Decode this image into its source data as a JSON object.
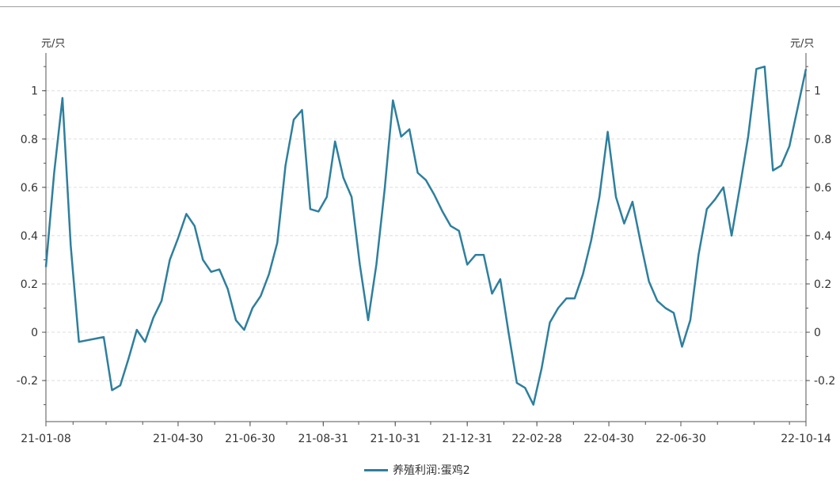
{
  "chart_data": {
    "type": "line",
    "y_unit_left": "元/只",
    "y_unit_right": "元/只",
    "ylim": [
      -0.37,
      1.13
    ],
    "yticks": [
      -0.2,
      0,
      0.2,
      0.4,
      0.6,
      0.8,
      1
    ],
    "ytick_labels": [
      "-0.2",
      "0",
      "0.2",
      "0.4",
      "0.6",
      "0.8",
      "1"
    ],
    "xlim": [
      "2021-01-08",
      "2022-10-14"
    ],
    "xticks": [
      "2021-01-08",
      "2021-04-30",
      "2021-06-30",
      "2021-08-31",
      "2021-10-31",
      "2021-12-31",
      "2022-02-28",
      "2022-04-30",
      "2022-06-30",
      "2022-10-14"
    ],
    "xtick_labels": [
      "21-01-08",
      "21-04-30",
      "21-06-30",
      "21-08-31",
      "21-10-31",
      "21-12-31",
      "22-02-28",
      "22-04-30",
      "22-06-30",
      "22-10-14"
    ],
    "grid": true,
    "legend_position": "bottom-center",
    "colors": {
      "series": "#2e7f9e",
      "grid": "#dddddd",
      "axis": "#555555"
    },
    "series": [
      {
        "name": "养殖利润:蛋鸡2",
        "points": [
          [
            "2021-01-08",
            0.27
          ],
          [
            "2021-01-15",
            0.66
          ],
          [
            "2021-01-22",
            0.97
          ],
          [
            "2021-01-29",
            0.36
          ],
          [
            "2021-02-05",
            -0.04
          ],
          [
            "2021-02-26",
            -0.02
          ],
          [
            "2021-03-05",
            -0.24
          ],
          [
            "2021-03-12",
            -0.22
          ],
          [
            "2021-03-19",
            -0.11
          ],
          [
            "2021-03-26",
            0.01
          ],
          [
            "2021-04-02",
            -0.04
          ],
          [
            "2021-04-09",
            0.06
          ],
          [
            "2021-04-16",
            0.13
          ],
          [
            "2021-04-23",
            0.3
          ],
          [
            "2021-04-30",
            0.39
          ],
          [
            "2021-05-07",
            0.49
          ],
          [
            "2021-05-14",
            0.44
          ],
          [
            "2021-05-21",
            0.3
          ],
          [
            "2021-05-28",
            0.25
          ],
          [
            "2021-06-04",
            0.26
          ],
          [
            "2021-06-11",
            0.18
          ],
          [
            "2021-06-18",
            0.05
          ],
          [
            "2021-06-25",
            0.01
          ],
          [
            "2021-07-02",
            0.1
          ],
          [
            "2021-07-09",
            0.15
          ],
          [
            "2021-07-16",
            0.24
          ],
          [
            "2021-07-23",
            0.37
          ],
          [
            "2021-07-30",
            0.69
          ],
          [
            "2021-08-06",
            0.88
          ],
          [
            "2021-08-13",
            0.92
          ],
          [
            "2021-08-20",
            0.51
          ],
          [
            "2021-08-27",
            0.5
          ],
          [
            "2021-09-03",
            0.56
          ],
          [
            "2021-09-10",
            0.79
          ],
          [
            "2021-09-17",
            0.64
          ],
          [
            "2021-09-24",
            0.56
          ],
          [
            "2021-10-01",
            0.28
          ],
          [
            "2021-10-08",
            0.05
          ],
          [
            "2021-10-15",
            0.28
          ],
          [
            "2021-10-22",
            0.59
          ],
          [
            "2021-10-29",
            0.96
          ],
          [
            "2021-11-05",
            0.81
          ],
          [
            "2021-11-12",
            0.84
          ],
          [
            "2021-11-19",
            0.66
          ],
          [
            "2021-11-26",
            0.63
          ],
          [
            "2021-12-03",
            0.57
          ],
          [
            "2021-12-10",
            0.5
          ],
          [
            "2021-12-17",
            0.44
          ],
          [
            "2021-12-24",
            0.42
          ],
          [
            "2021-12-31",
            0.28
          ],
          [
            "2022-01-07",
            0.32
          ],
          [
            "2022-01-14",
            0.32
          ],
          [
            "2022-01-21",
            0.16
          ],
          [
            "2022-01-28",
            0.22
          ],
          [
            "2022-02-04",
            0.0
          ],
          [
            "2022-02-11",
            -0.21
          ],
          [
            "2022-02-18",
            -0.23
          ],
          [
            "2022-02-25",
            -0.3
          ],
          [
            "2022-03-04",
            -0.15
          ],
          [
            "2022-03-11",
            0.04
          ],
          [
            "2022-03-18",
            0.1
          ],
          [
            "2022-03-25",
            0.14
          ],
          [
            "2022-04-01",
            0.14
          ],
          [
            "2022-04-08",
            0.24
          ],
          [
            "2022-04-15",
            0.38
          ],
          [
            "2022-04-22",
            0.56
          ],
          [
            "2022-04-29",
            0.83
          ],
          [
            "2022-05-06",
            0.56
          ],
          [
            "2022-05-13",
            0.45
          ],
          [
            "2022-05-20",
            0.54
          ],
          [
            "2022-05-27",
            0.37
          ],
          [
            "2022-06-03",
            0.21
          ],
          [
            "2022-06-10",
            0.13
          ],
          [
            "2022-06-17",
            0.1
          ],
          [
            "2022-06-24",
            0.08
          ],
          [
            "2022-07-01",
            -0.06
          ],
          [
            "2022-07-08",
            0.05
          ],
          [
            "2022-07-15",
            0.32
          ],
          [
            "2022-07-22",
            0.51
          ],
          [
            "2022-07-29",
            0.55
          ],
          [
            "2022-08-05",
            0.6
          ],
          [
            "2022-08-12",
            0.4
          ],
          [
            "2022-08-19",
            0.6
          ],
          [
            "2022-08-26",
            0.81
          ],
          [
            "2022-09-02",
            1.09
          ],
          [
            "2022-09-09",
            1.1
          ],
          [
            "2022-09-16",
            0.67
          ],
          [
            "2022-09-23",
            0.69
          ],
          [
            "2022-09-30",
            0.77
          ],
          [
            "2022-10-07",
            0.93
          ],
          [
            "2022-10-14",
            1.09
          ]
        ]
      }
    ]
  }
}
